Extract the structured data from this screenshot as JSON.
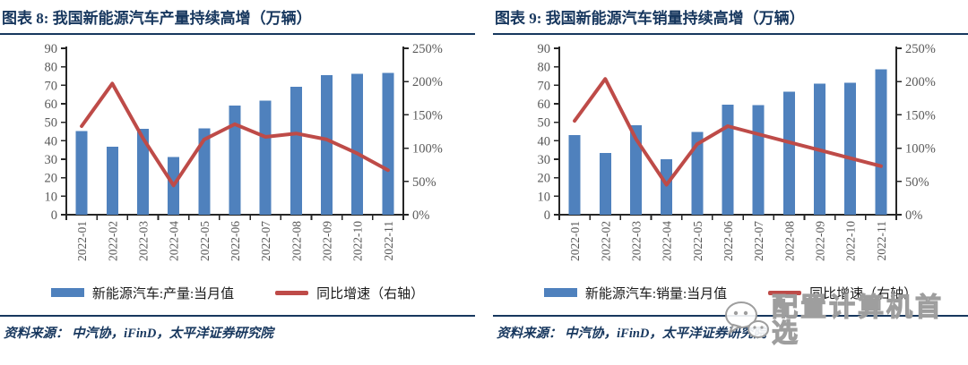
{
  "colors": {
    "bar_blue": "#4F81BD",
    "line_red": "#BE4B48",
    "title_navy": "#17375E",
    "axis_black": "#262626",
    "tick_gray": "#595959",
    "watermark_gray": "#9E9E9E"
  },
  "panels": [
    {
      "title": "图表 8:  我国新能源汽车产量持续高增（万辆）",
      "legend_bar": "新能源汽车:产量:当月值",
      "legend_line": "同比增速（右轴）",
      "source": "资料来源：  中汽协，iFinD，太平洋证券研究院"
    },
    {
      "title": "图表 9:  我国新能源汽车销量持续高增（万辆）",
      "legend_bar": "新能源汽车:销量:当月值",
      "legend_line": "同比增速（右轴）",
      "source": "资料来源：  中汽协，iFinD，太平洋证券研究院"
    }
  ],
  "watermark": {
    "text": "配置计算机首选",
    "icon": "wechat-icon"
  },
  "chart_data": [
    {
      "type": "bar",
      "combo": "bar+line",
      "title": "图表 8: 我国新能源汽车产量持续高增（万辆）",
      "categories": [
        "2022-01",
        "2022-02",
        "2022-03",
        "2022-04",
        "2022-05",
        "2022-06",
        "2022-07",
        "2022-08",
        "2022-09",
        "2022-10",
        "2022-11"
      ],
      "series": [
        {
          "name": "新能源汽车:产量:当月值",
          "type": "bar",
          "axis": "left",
          "unit": "万辆",
          "values": [
            45.2,
            36.8,
            46.5,
            31.2,
            46.6,
            59.0,
            61.7,
            69.1,
            75.5,
            76.2,
            76.8
          ]
        },
        {
          "name": "同比增速（右轴）",
          "type": "line",
          "axis": "right",
          "unit": "%",
          "values": [
            133,
            197,
            115,
            44,
            113,
            136,
            117,
            122,
            113,
            92,
            67
          ]
        }
      ],
      "left_axis": {
        "min": 0,
        "max": 90,
        "step": 10
      },
      "right_axis": {
        "min": 0,
        "max": 250,
        "step": 50,
        "suffix": "%"
      },
      "grid": false,
      "legend_position": "bottom"
    },
    {
      "type": "bar",
      "combo": "bar+line",
      "title": "图表 9: 我国新能源汽车销量持续高增（万辆）",
      "categories": [
        "2022-01",
        "2022-02",
        "2022-03",
        "2022-04",
        "2022-05",
        "2022-06",
        "2022-07",
        "2022-08",
        "2022-09",
        "2022-10",
        "2022-11"
      ],
      "series": [
        {
          "name": "新能源汽车:销量:当月值",
          "type": "bar",
          "axis": "left",
          "unit": "万辆",
          "values": [
            43.1,
            33.4,
            48.4,
            29.9,
            44.7,
            59.6,
            59.3,
            66.6,
            70.8,
            71.4,
            78.6
          ]
        },
        {
          "name": "同比增速（右轴）",
          "type": "line",
          "axis": "right",
          "unit": "%",
          "values": [
            141,
            204,
            114,
            45,
            106,
            133,
            121,
            109,
            97,
            85,
            73
          ]
        }
      ],
      "left_axis": {
        "min": 0,
        "max": 90,
        "step": 10
      },
      "right_axis": {
        "min": 0,
        "max": 250,
        "step": 50,
        "suffix": "%"
      },
      "grid": false,
      "legend_position": "bottom"
    }
  ]
}
